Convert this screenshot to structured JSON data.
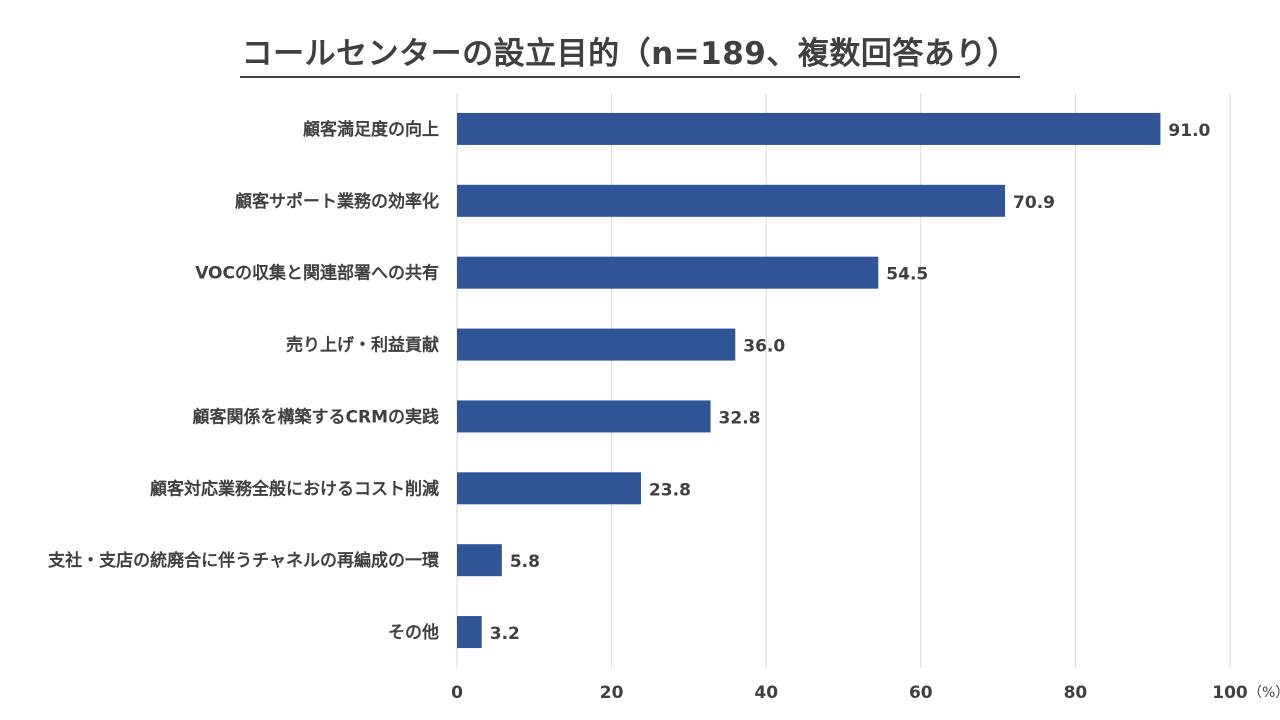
{
  "chart_data": {
    "type": "bar",
    "orientation": "horizontal",
    "title": "コールセンターの設立目的（n=189、複数回答あり）",
    "categories": [
      "顧客満足度の向上",
      "顧客サポート業務の効率化",
      "VOCの収集と関連部署への共有",
      "売り上げ・利益貢献",
      "顧客関係を構築するCRMの実践",
      "顧客対応業務全般におけるコスト削減",
      "支社・支店の統廃合に伴うチャネルの再編成の一環",
      "その他"
    ],
    "values": [
      91.0,
      70.9,
      54.5,
      36.0,
      32.8,
      23.8,
      5.8,
      3.2
    ],
    "value_labels": [
      "91.0",
      "70.9",
      "54.5",
      "36.0",
      "32.8",
      "23.8",
      "5.8",
      "3.2"
    ],
    "xlim": [
      0,
      100
    ],
    "xticks": [
      "0",
      "20",
      "40",
      "60",
      "80",
      "100"
    ],
    "xunit": "（%）",
    "grid": true,
    "bar_color": "#2f5597"
  }
}
